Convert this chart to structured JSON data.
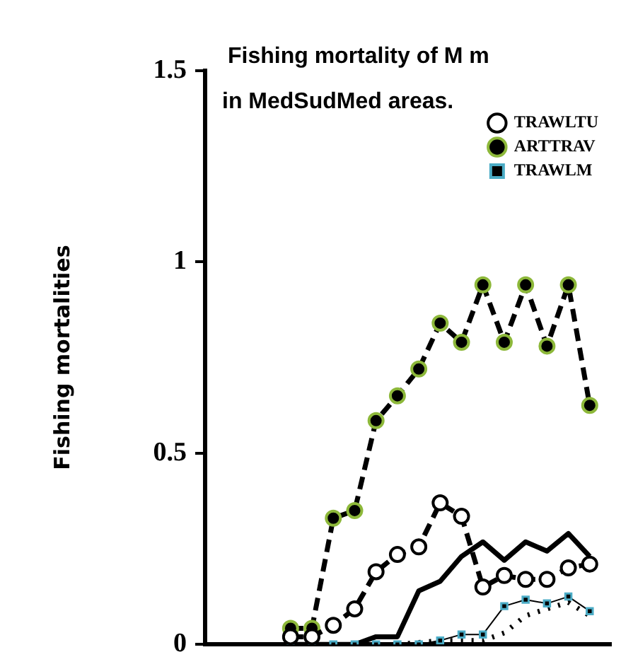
{
  "chart_data": {
    "type": "line",
    "title": "Fishing mortality of M m\nin MedSudMed areas.",
    "ylabel": "Fishing mortalities",
    "categories": [
      null,
      null,
      null,
      null,
      null,
      null,
      null,
      null,
      null,
      null,
      null,
      null,
      null,
      null,
      null,
      null,
      null,
      null,
      null,
      null
    ],
    "ylim": [
      0,
      1.5
    ],
    "yticks": [
      0,
      0.5,
      1,
      1.5
    ],
    "grid": false,
    "legend": "top right",
    "tick_labels": "y",
    "series": [
      {
        "name": "TRAWLTU",
        "color": "#000000",
        "marker": "circle",
        "line_style": "dashed",
        "values": [
          null,
          null,
          null,
          null,
          0.02,
          0.02,
          0.05,
          0.093,
          0.19,
          0.235,
          0.255,
          0.37,
          0.335,
          0.15,
          0.18,
          0.17,
          0.17,
          0.2,
          0.21,
          null
        ]
      },
      {
        "name": "ARTTRAV",
        "color": "#8db83a",
        "marker": "circle",
        "line_style": "dashed",
        "values": [
          null,
          null,
          null,
          null,
          0.042,
          0.042,
          0.33,
          0.35,
          0.585,
          0.65,
          0.72,
          0.84,
          0.79,
          0.94,
          0.79,
          0.94,
          0.78,
          0.94,
          0.625,
          null
        ]
      },
      {
        "name": "TRAWLM",
        "color": "#4bacc6",
        "marker": "square",
        "line_style": "solid",
        "values": [
          null,
          null,
          null,
          null,
          0,
          0,
          0,
          0,
          0,
          0,
          0,
          0.01,
          0.026,
          0.026,
          0.1,
          0.117,
          0.107,
          0.125,
          0.087,
          null
        ]
      },
      {
        "color": "#000000",
        "marker": "none",
        "line_style": "solid",
        "values": [
          null,
          null,
          null,
          null,
          0,
          0,
          0,
          0,
          0.02,
          0.02,
          0.14,
          0.165,
          0.23,
          0.268,
          0.22,
          0.268,
          0.244,
          0.29,
          0.23,
          null
        ]
      },
      {
        "color": "#000000",
        "marker": "none",
        "line_style": "dotted",
        "values": [
          null,
          null,
          null,
          null,
          null,
          null,
          null,
          null,
          null,
          0,
          0.005,
          0.01,
          0.01,
          0.01,
          0.03,
          0.075,
          0.093,
          0.11,
          0.075,
          null
        ]
      }
    ]
  }
}
